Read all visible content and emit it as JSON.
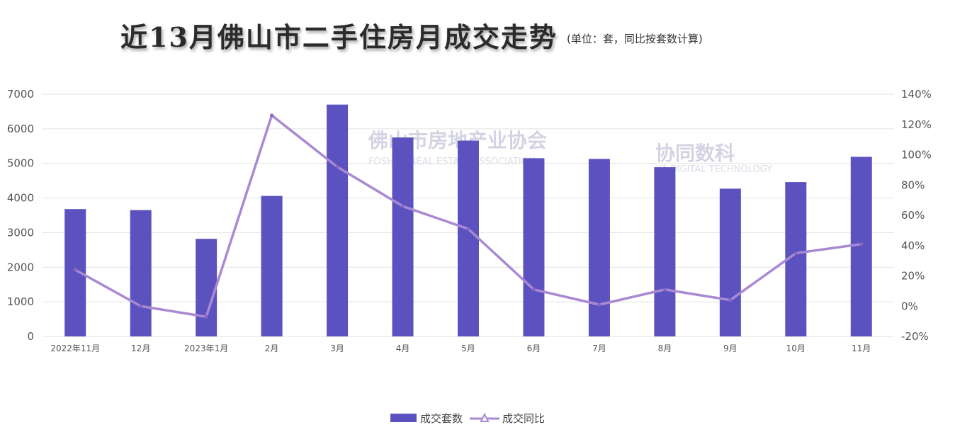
{
  "title": "近13月佛山市二手住房月成交走势",
  "subtitle": "(单位：套，同比按套数计算)",
  "watermarks": {
    "left_cn": "佛山市房地产业协会",
    "left_en": "FOSHAN REAL ESTATE ASSOCIATION",
    "right_cn": "协同数科",
    "right_en": "XT DIGITAL TECHNOLOGY"
  },
  "colors": {
    "bar": "#5b52c0",
    "line": "#a989d2",
    "grid": "#e2e2e2"
  },
  "chart_data": {
    "type": "bar",
    "categories": [
      "2022年11月",
      "12月",
      "2023年1月",
      "2月",
      "3月",
      "4月",
      "5月",
      "6月",
      "7月",
      "8月",
      "9月",
      "10月",
      "11月"
    ],
    "series": [
      {
        "name": "成交套数",
        "type": "bar",
        "axis": "left",
        "values": [
          3680,
          3650,
          2820,
          4060,
          6700,
          5750,
          5660,
          5150,
          5130,
          4890,
          4270,
          4460,
          5190
        ]
      },
      {
        "name": "成交同比",
        "type": "line",
        "axis": "right",
        "marker": "triangle",
        "values": [
          24,
          0,
          -7,
          126,
          92,
          66,
          51,
          11,
          1,
          11,
          4,
          35,
          41
        ]
      }
    ],
    "left_axis": {
      "min": 0,
      "max": 7000,
      "step": 1000,
      "ticks": [
        "0",
        "1000",
        "2000",
        "3000",
        "4000",
        "5000",
        "6000",
        "7000"
      ]
    },
    "right_axis": {
      "min": -20,
      "max": 140,
      "step": 20,
      "ticks": [
        "-20%",
        "0%",
        "20%",
        "40%",
        "60%",
        "80%",
        "100%",
        "120%",
        "140%"
      ]
    },
    "grid": true,
    "legend": "bottom-center"
  }
}
